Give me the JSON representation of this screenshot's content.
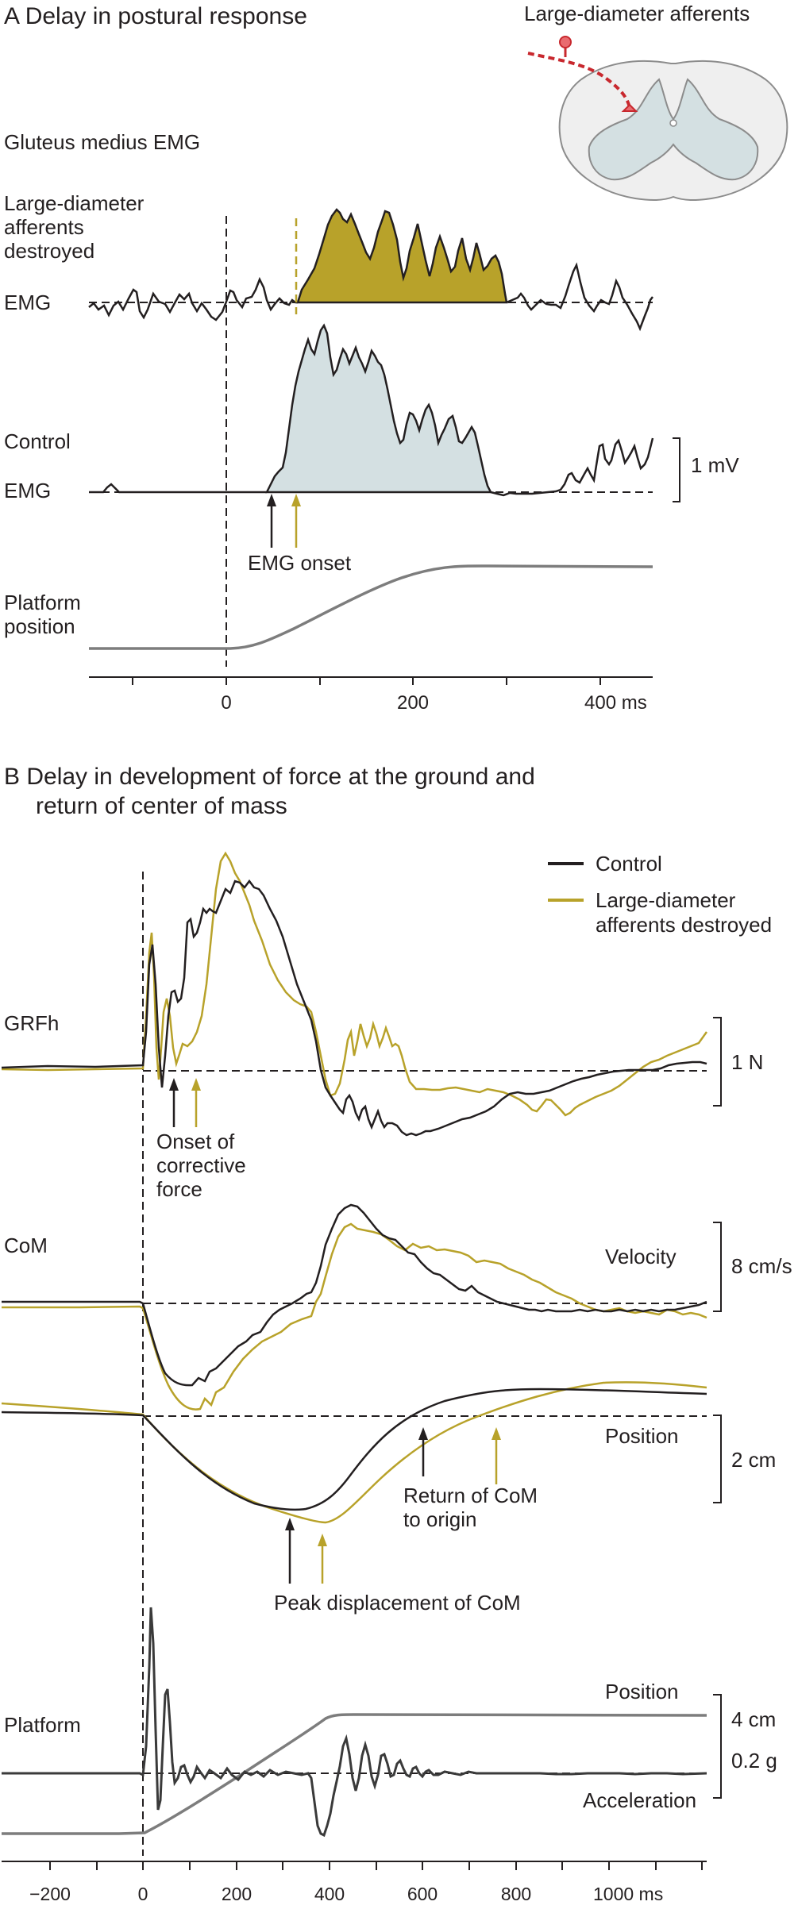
{
  "colors": {
    "control": "#231f20",
    "lesion": "#b8a22a",
    "control_fill": "#d4e0e2",
    "platform_gray": "#7d7d7d",
    "cord_red": "#c8282e",
    "cord_gray": "#dcdcdc",
    "cord_white": "#efefef"
  },
  "panelA": {
    "title": "A  Delay in postural response",
    "inset_label": "Large-diameter afferents",
    "section": "Gluteus medius EMG",
    "lesion_label": [
      "Large-diameter",
      "afferents",
      "destroyed"
    ],
    "emg": "EMG",
    "control": "Control",
    "emg2": "EMG",
    "scale": "1 mV",
    "onset": "EMG onset",
    "platform": [
      "Platform",
      "position"
    ],
    "ticks": [
      "0",
      "200",
      "400 ms"
    ]
  },
  "panelB": {
    "title": [
      "B  Delay in development of force at the ground and",
      "return of center of mass"
    ],
    "legend_control": "Control",
    "legend_lesion": [
      "Large-diameter",
      "afferents destroyed"
    ],
    "grfh": "GRFh",
    "grfh_scale": "1 N",
    "onset_force": [
      "Onset of",
      "corrective",
      "force"
    ],
    "com": "CoM",
    "velocity": "Velocity",
    "velocity_scale": "8 cm/s",
    "position": "Position",
    "position_scale": "2 cm",
    "return": [
      "Return of CoM",
      "to origin"
    ],
    "peak": "Peak displacement of CoM",
    "platform": "Platform",
    "platform_position": "Position",
    "platform_pos_scale": "4 cm",
    "platform_acc_scale": "0.2 g",
    "acceleration": "Acceleration",
    "ticks": [
      "−200",
      "0",
      "200",
      "400",
      "600",
      "800",
      "1000 ms"
    ]
  }
}
